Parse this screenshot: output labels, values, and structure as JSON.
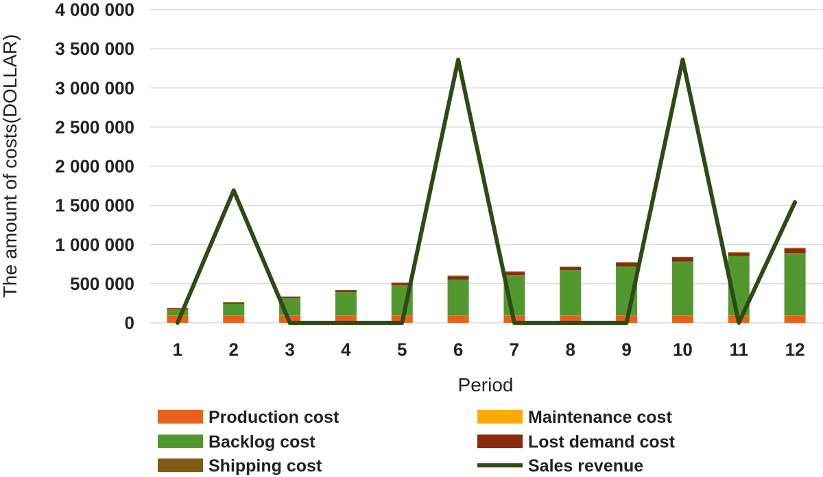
{
  "chart_data": {
    "type": "bar",
    "stacked": true,
    "title": "",
    "xlabel": "Period",
    "ylabel": "The amount of costs(DOLLAR)",
    "categories": [
      "1",
      "2",
      "3",
      "4",
      "5",
      "6",
      "7",
      "8",
      "9",
      "10",
      "11",
      "12"
    ],
    "ylim": [
      0,
      4000000
    ],
    "yticks": [
      0,
      500000,
      1000000,
      1500000,
      2000000,
      2500000,
      3000000,
      3500000,
      4000000
    ],
    "ytick_labels": [
      "0",
      "500 000",
      "1 000 000",
      "1 500 000",
      "2 000 000",
      "2 500 000",
      "3 000 000",
      "3 500 000",
      "4 000 000"
    ],
    "grid": true,
    "legend_position": "bottom",
    "series": [
      {
        "name": "Production cost",
        "kind": "bar",
        "color": "#e8601c",
        "values": [
          90000,
          90000,
          90000,
          90000,
          90000,
          90000,
          90000,
          90000,
          90000,
          90000,
          90000,
          90000
        ]
      },
      {
        "name": "Maintenance cost",
        "kind": "bar",
        "color": "#ffaa00",
        "values": [
          2000,
          2000,
          2000,
          2000,
          2000,
          2000,
          2000,
          2000,
          2000,
          2000,
          2000,
          2000
        ]
      },
      {
        "name": "Backlog cost",
        "kind": "bar",
        "color": "#52982e",
        "values": [
          80000,
          150000,
          220000,
          300000,
          390000,
          460000,
          520000,
          580000,
          630000,
          690000,
          760000,
          800000
        ]
      },
      {
        "name": "Lost demand cost",
        "kind": "bar",
        "color": "#8b2a0f",
        "values": [
          12000,
          15000,
          18000,
          22000,
          25000,
          40000,
          35000,
          38000,
          45000,
          50000,
          40000,
          55000
        ]
      },
      {
        "name": "Shipping cost",
        "kind": "bar",
        "color": "#7f5a12",
        "values": [
          6000,
          6000,
          6000,
          6000,
          6000,
          10000,
          8000,
          8000,
          8000,
          10000,
          8000,
          10000
        ]
      },
      {
        "name": "Sales revenue",
        "kind": "line",
        "color": "#2e4a16",
        "values": [
          0,
          1690000,
          0,
          0,
          0,
          3360000,
          0,
          0,
          0,
          3360000,
          0,
          1540000
        ]
      }
    ]
  }
}
